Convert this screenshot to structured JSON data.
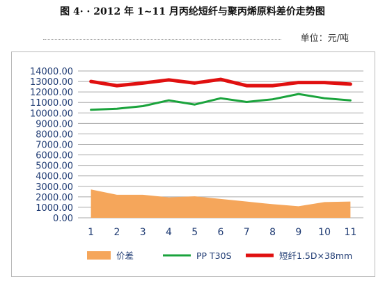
{
  "document": {
    "title": "图 4· · 2012 年 1~11 月丙纶短纤与聚丙烯原料差价走势图",
    "unit_note": "单位：元/吨"
  },
  "chart_data": {
    "type": "line",
    "categories": [
      "1",
      "2",
      "3",
      "4",
      "5",
      "6",
      "7",
      "8",
      "9",
      "10",
      "11"
    ],
    "ylim": [
      0,
      14000
    ],
    "ytick_labels": [
      "0.00",
      "1000.00",
      "2000.00",
      "3000.00",
      "4000.00",
      "5000.00",
      "6000.00",
      "7000.00",
      "8000.00",
      "9000.00",
      "10000.00",
      "11000.00",
      "12000.00",
      "13000.00",
      "14000.00"
    ],
    "grid": true,
    "legend_position": "bottom",
    "series": [
      {
        "name": "价差",
        "kind": "area",
        "color": "#f5a65b",
        "values": [
          2700,
          2200,
          2200,
          1950,
          2050,
          1800,
          1550,
          1300,
          1100,
          1500,
          1550
        ]
      },
      {
        "name": "PP T30S",
        "kind": "line",
        "color": "#1aa33c",
        "values": [
          10300,
          10400,
          10650,
          11200,
          10800,
          11400,
          11050,
          11300,
          11800,
          11400,
          11200
        ]
      },
      {
        "name": "短纤1.5D×38mm",
        "kind": "line",
        "color": "#e01010",
        "values": [
          13000,
          12600,
          12850,
          13150,
          12850,
          13200,
          12600,
          12600,
          12900,
          12900,
          12750
        ]
      }
    ]
  }
}
